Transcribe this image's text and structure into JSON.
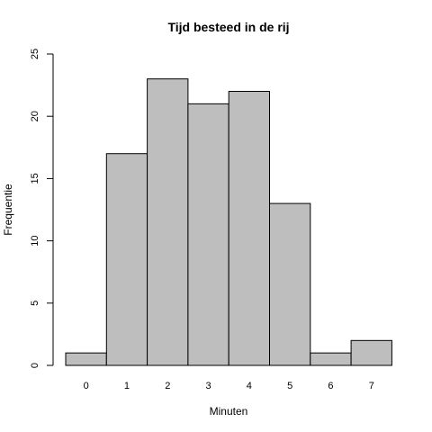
{
  "chart_data": {
    "type": "bar",
    "title": "Tijd besteed in de rij",
    "xlabel": "Minuten",
    "ylabel": "Frequentie",
    "categories": [
      "0",
      "1",
      "2",
      "3",
      "4",
      "5",
      "6",
      "7"
    ],
    "values": [
      1,
      17,
      23,
      21,
      22,
      13,
      1,
      2
    ],
    "ylim": [
      0,
      25
    ],
    "yticks": [
      0,
      5,
      10,
      15,
      20,
      25
    ],
    "grid": false,
    "colors": {
      "bar_fill": "#bebebe",
      "bar_stroke": "#000000"
    }
  }
}
